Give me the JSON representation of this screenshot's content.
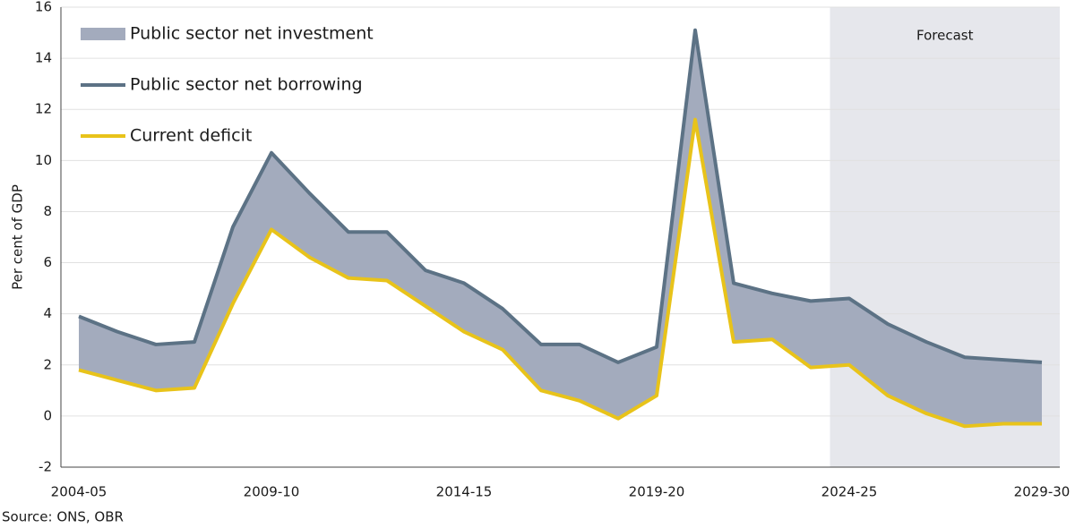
{
  "chart_data": {
    "type": "area-line",
    "y_label": "Per cent of GDP",
    "source": "Source: ONS, OBR",
    "annotation": "Forecast",
    "categories": [
      "2004-05",
      null,
      null,
      null,
      null,
      "2009-10",
      null,
      null,
      null,
      null,
      "2014-15",
      null,
      null,
      null,
      null,
      "2019-20",
      null,
      null,
      null,
      null,
      "2024-25",
      null,
      null,
      null,
      null,
      "2029-30"
    ],
    "series": [
      {
        "name": "Public sector net investment",
        "color": "#a3abbd",
        "kind": "area",
        "values": [
          2.1,
          1.9,
          1.8,
          1.8,
          3.0,
          3.0,
          2.5,
          1.8,
          1.9,
          1.4,
          1.9,
          1.6,
          1.8,
          2.2,
          2.2,
          1.9,
          3.5,
          2.3,
          1.8,
          2.6,
          2.6,
          2.8,
          2.8,
          2.7,
          2.5,
          2.4
        ]
      },
      {
        "name": "Public sector net borrowing",
        "color": "#5c7285",
        "kind": "line",
        "values": [
          3.9,
          3.3,
          2.8,
          2.9,
          7.4,
          10.3,
          8.7,
          7.2,
          7.2,
          5.7,
          5.2,
          4.2,
          2.8,
          2.8,
          2.1,
          2.7,
          15.1,
          5.2,
          4.8,
          4.5,
          4.6,
          3.6,
          2.9,
          2.3,
          2.2,
          2.1
        ]
      },
      {
        "name": "Current deficit",
        "color": "#e8c31a",
        "kind": "line",
        "values": [
          1.8,
          1.4,
          1.0,
          1.1,
          4.4,
          7.3,
          6.2,
          5.4,
          5.3,
          4.3,
          3.3,
          2.6,
          1.0,
          0.6,
          -0.1,
          0.8,
          11.6,
          2.9,
          3.0,
          1.9,
          2.0,
          0.8,
          0.1,
          -0.4,
          -0.3,
          -0.3
        ]
      }
    ],
    "ylim": [
      -2,
      16
    ],
    "yticks": [
      -2,
      0,
      2,
      4,
      6,
      8,
      10,
      12,
      14,
      16
    ],
    "grid": true,
    "legend": "top-left",
    "forecast_color": "#e6e7ec"
  }
}
